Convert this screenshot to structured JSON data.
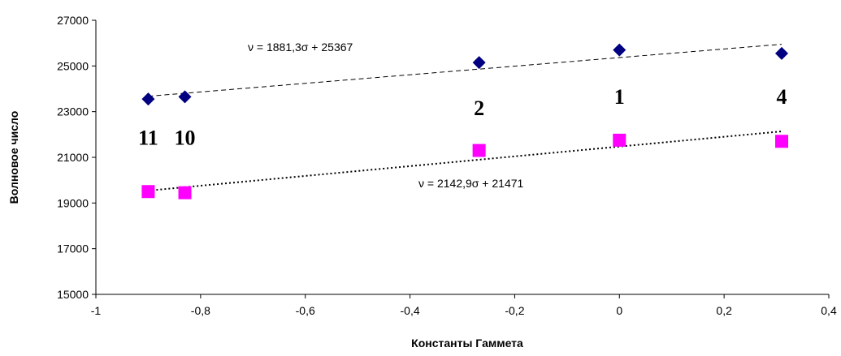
{
  "chart_data": {
    "type": "scatter",
    "xlabel": "Константы Гаммета",
    "ylabel": "Волновое число",
    "xlim": [
      -1,
      0.4
    ],
    "ylim": [
      15000,
      27000
    ],
    "x_ticks": [
      "-1",
      "-0,8",
      "-0,6",
      "-0,4",
      "-0,2",
      "0",
      "0,2",
      "0,4"
    ],
    "y_ticks": [
      "15000",
      "17000",
      "19000",
      "21000",
      "23000",
      "25000",
      "27000"
    ],
    "legend": "none",
    "grid": false,
    "series": [
      {
        "marker": "diamond",
        "color": "#000080",
        "points": [
          {
            "x": -0.9,
            "y": 23550
          },
          {
            "x": -0.83,
            "y": 23650
          },
          {
            "x": -0.268,
            "y": 25150
          },
          {
            "x": 0.0,
            "y": 25700
          },
          {
            "x": 0.31,
            "y": 25550
          }
        ],
        "trend": {
          "slope": 1881.3,
          "intercept": 25367,
          "style": "dashed"
        },
        "equation": "ν = 1881,3σ + 25367"
      },
      {
        "marker": "square",
        "color": "#ff00ff",
        "points": [
          {
            "x": -0.9,
            "y": 19500
          },
          {
            "x": -0.83,
            "y": 19450
          },
          {
            "x": -0.268,
            "y": 21300
          },
          {
            "x": 0.0,
            "y": 21750
          },
          {
            "x": 0.31,
            "y": 21700
          }
        ],
        "trend": {
          "slope": 2142.9,
          "intercept": 21471,
          "style": "dotted"
        },
        "equation": "ν = 2142,9σ + 21471"
      }
    ],
    "point_labels": [
      {
        "text": "11",
        "x": -0.9,
        "y": 21550
      },
      {
        "text": "10",
        "x": -0.83,
        "y": 21550
      },
      {
        "text": "2",
        "x": -0.268,
        "y": 22850
      },
      {
        "text": "1",
        "x": 0.0,
        "y": 23350
      },
      {
        "text": "4",
        "x": 0.31,
        "y": 23350
      }
    ]
  }
}
